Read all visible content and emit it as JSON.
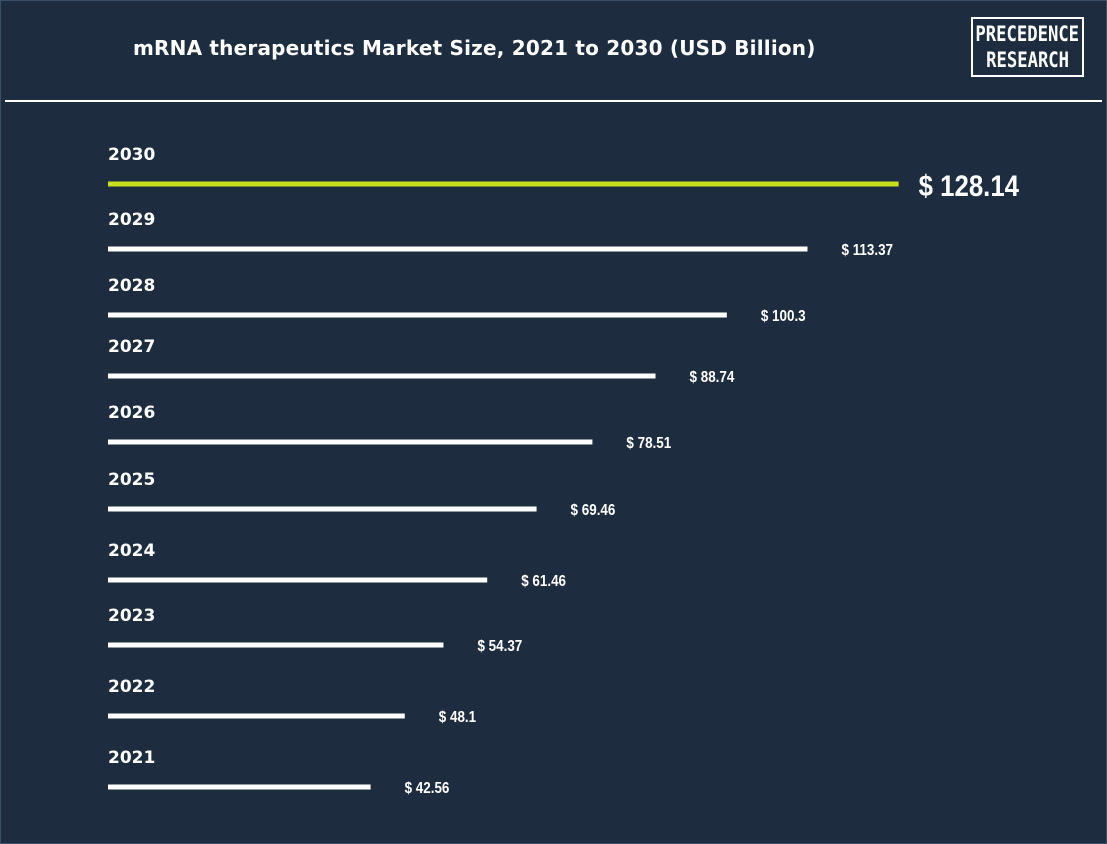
{
  "header": {
    "title": "mRNA therapeutics Market Size, 2021 to 2030 (USD Billion)",
    "logo_line1": "PRECEDENCE",
    "logo_line2": "RESEARCH"
  },
  "colors": {
    "background": "#1d2d3f",
    "bar": "#ffffff",
    "highlight_bar": "#c8e020",
    "text": "#ffffff"
  },
  "chart_data": {
    "type": "bar",
    "orientation": "horizontal",
    "title": "mRNA therapeutics Market Size, 2021 to 2030 (USD Billion)",
    "categories": [
      "2030",
      "2029",
      "2028",
      "2027",
      "2026",
      "2025",
      "2024",
      "2023",
      "2022",
      "2021"
    ],
    "values": [
      128.14,
      113.37,
      100.3,
      88.74,
      78.51,
      69.46,
      61.46,
      54.37,
      48.1,
      42.56
    ],
    "labels": [
      "$ 128.14",
      "$ 113.37",
      "$ 100.3",
      "$ 88.74",
      "$ 78.51",
      "$ 69.46",
      "$ 61.46",
      "$ 54.37",
      "$ 48.1",
      "$ 42.56"
    ],
    "highlight": "2030",
    "xlabel": "",
    "ylabel": "",
    "grid": false,
    "legend": "none"
  }
}
